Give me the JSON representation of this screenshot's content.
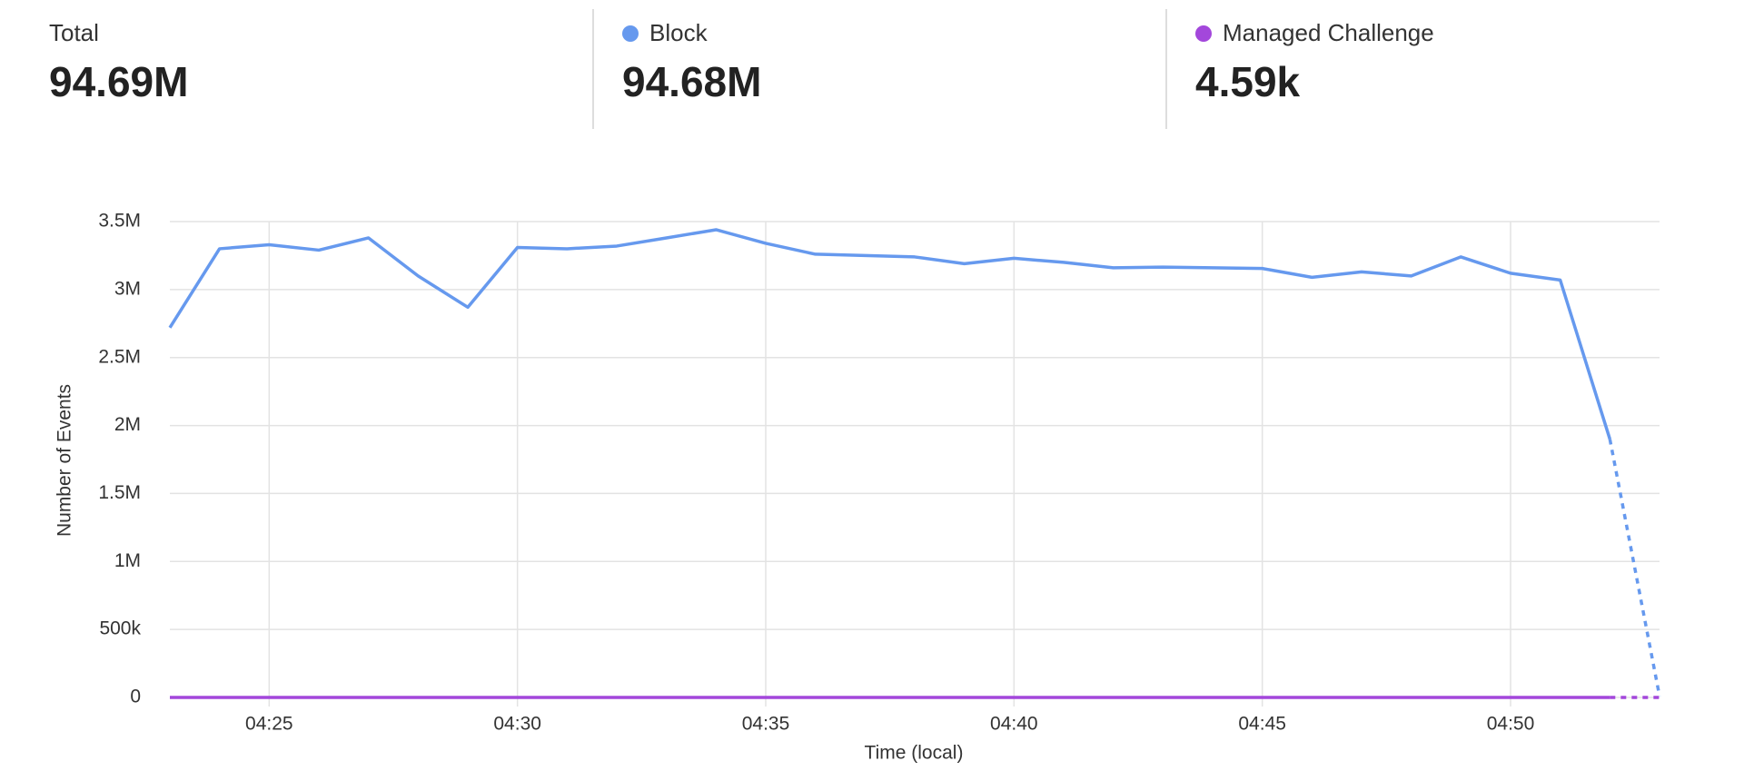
{
  "summary": [
    {
      "label": "Total",
      "value": "94.69M"
    },
    {
      "label": "Block",
      "value": "94.68M",
      "color": "#6699ee"
    },
    {
      "label": "Managed Challenge",
      "value": "4.59k",
      "color": "#a347db"
    }
  ],
  "chart_data": {
    "type": "line",
    "x_label": "Time (local)",
    "y_label": "Number of Events",
    "x": [
      "04:23",
      "04:24",
      "04:25",
      "04:26",
      "04:27",
      "04:28",
      "04:29",
      "04:30",
      "04:31",
      "04:32",
      "04:33",
      "04:34",
      "04:35",
      "04:36",
      "04:37",
      "04:38",
      "04:39",
      "04:40",
      "04:41",
      "04:42",
      "04:43",
      "04:44",
      "04:45",
      "04:46",
      "04:47",
      "04:48",
      "04:49",
      "04:50",
      "04:51",
      "04:52",
      "04:53"
    ],
    "xlim": [
      "04:23",
      "04:53"
    ],
    "xticks": [
      "04:25",
      "04:30",
      "04:35",
      "04:40",
      "04:45",
      "04:50"
    ],
    "ylim": [
      0,
      3500000
    ],
    "yticks": [
      0,
      {
        "value": 500000,
        "label": "500k"
      },
      {
        "value": 1000000,
        "label": "1M"
      },
      {
        "value": 1500000,
        "label": "1.5M"
      },
      {
        "value": 2000000,
        "label": "2M"
      },
      {
        "value": 2500000,
        "label": "2.5M"
      },
      {
        "value": 3000000,
        "label": "3M"
      },
      {
        "value": 3500000,
        "label": "3.5M"
      }
    ],
    "grid": true,
    "last_segment_dashed": true,
    "series": [
      {
        "name": "Block",
        "color": "#6699ee",
        "values": [
          2720000,
          3300000,
          3330000,
          3290000,
          3380000,
          3100000,
          2870000,
          3310000,
          3300000,
          3320000,
          3380000,
          3440000,
          3340000,
          3260000,
          3250000,
          3240000,
          3190000,
          3230000,
          3200000,
          3160000,
          3165000,
          3160000,
          3155000,
          3090000,
          3130000,
          3100000,
          3240000,
          3120000,
          3070000,
          1900000,
          10000
        ]
      },
      {
        "name": "Managed Challenge",
        "color": "#a347db",
        "values": [
          150,
          150,
          150,
          150,
          150,
          150,
          150,
          150,
          150,
          150,
          150,
          150,
          150,
          150,
          150,
          150,
          150,
          150,
          150,
          150,
          150,
          150,
          150,
          150,
          150,
          150,
          150,
          150,
          150,
          150,
          100
        ]
      }
    ]
  }
}
